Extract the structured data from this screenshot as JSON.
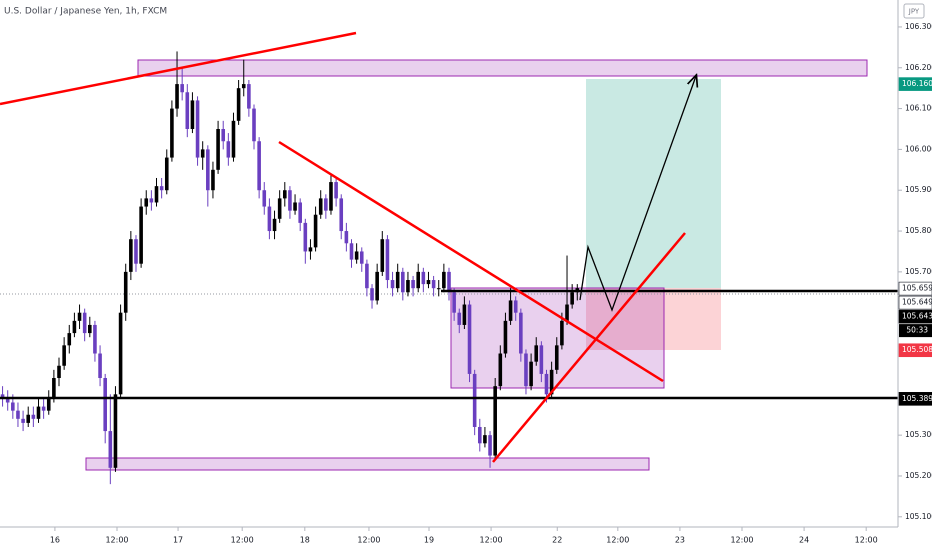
{
  "chart_data": {
    "type": "candlestick",
    "title": "U.S. Dollar / Japanese Yen, 1h, FXCM",
    "currency": "JPY",
    "countdown": "50:33",
    "up_color": "#000000",
    "down_color": "#6a3fc0",
    "xlim": [
      0,
      175
    ],
    "ylim": [
      105.075,
      106.366
    ],
    "xticks": [
      {
        "value": 10.7,
        "label": "16"
      },
      {
        "value": 22.8,
        "label": "12:00"
      },
      {
        "value": 34.7,
        "label": "17"
      },
      {
        "value": 47.2,
        "label": "12:00"
      },
      {
        "value": 59.4,
        "label": "18"
      },
      {
        "value": 71.9,
        "label": "12:00"
      },
      {
        "value": 83.6,
        "label": "19"
      },
      {
        "value": 95.7,
        "label": "12:00"
      },
      {
        "value": 108.6,
        "label": "22"
      },
      {
        "value": 120.4,
        "label": "12:00"
      },
      {
        "value": 132.5,
        "label": "23"
      },
      {
        "value": 144.6,
        "label": "12:00"
      },
      {
        "value": 156.7,
        "label": "24"
      },
      {
        "value": 168.8,
        "label": "12:00"
      }
    ],
    "yticks": [
      {
        "value": 106.3,
        "label": "106.300"
      },
      {
        "value": 106.2,
        "label": "106.200"
      },
      {
        "value": 106.1,
        "label": "106.100"
      },
      {
        "value": 106.0,
        "label": "106.000"
      },
      {
        "value": 105.9,
        "label": "105.900"
      },
      {
        "value": 105.8,
        "label": "105.800"
      },
      {
        "value": 105.7,
        "label": "105.700"
      },
      {
        "value": 105.3,
        "label": "105.300"
      },
      {
        "value": 105.2,
        "label": "105.200"
      },
      {
        "value": 105.1,
        "label": "105.100"
      }
    ],
    "price_labels": [
      {
        "value": 106.16,
        "label": "106.160",
        "color": "#089981"
      },
      {
        "value": 105.659,
        "label": "105.659",
        "color": "#ffffff"
      },
      {
        "value": 105.649,
        "label": "105.649",
        "color": "#ffffff"
      },
      {
        "value": 105.643,
        "label": "105.643",
        "color": "#000000"
      },
      {
        "value": 105.508,
        "label": "105.508",
        "color": "#f23645"
      },
      {
        "value": 105.389,
        "label": "105.389",
        "color": "#000000"
      }
    ],
    "ohlc": [
      [
        105.4,
        105.42,
        105.37,
        105.39
      ],
      [
        105.39,
        105.41,
        105.36,
        105.38
      ],
      [
        105.38,
        105.4,
        105.34,
        105.36
      ],
      [
        105.36,
        105.38,
        105.32,
        105.34
      ],
      [
        105.34,
        105.36,
        105.31,
        105.33
      ],
      [
        105.33,
        105.37,
        105.32,
        105.35
      ],
      [
        105.35,
        105.37,
        105.32,
        105.34
      ],
      [
        105.34,
        105.39,
        105.33,
        105.37
      ],
      [
        105.37,
        105.39,
        105.34,
        105.36
      ],
      [
        105.36,
        105.41,
        105.35,
        105.39
      ],
      [
        105.39,
        105.46,
        105.38,
        105.44
      ],
      [
        105.44,
        105.49,
        105.42,
        105.47
      ],
      [
        105.47,
        105.54,
        105.46,
        105.52
      ],
      [
        105.52,
        105.57,
        105.5,
        105.55
      ],
      [
        105.55,
        105.6,
        105.54,
        105.58
      ],
      [
        105.58,
        105.62,
        105.56,
        105.6
      ],
      [
        105.6,
        105.61,
        105.53,
        105.55
      ],
      [
        105.55,
        105.59,
        105.54,
        105.57
      ],
      [
        105.57,
        105.58,
        105.48,
        105.5
      ],
      [
        105.5,
        105.52,
        105.42,
        105.44
      ],
      [
        105.44,
        105.45,
        105.28,
        105.31
      ],
      [
        105.31,
        105.4,
        105.18,
        105.22
      ],
      [
        105.22,
        105.42,
        105.21,
        105.4
      ],
      [
        105.4,
        105.62,
        105.39,
        105.6
      ],
      [
        105.6,
        105.72,
        105.58,
        105.7
      ],
      [
        105.7,
        105.8,
        105.68,
        105.78
      ],
      [
        105.78,
        105.79,
        105.7,
        105.72
      ],
      [
        105.72,
        105.88,
        105.71,
        105.86
      ],
      [
        105.86,
        105.9,
        105.84,
        105.88
      ],
      [
        105.88,
        105.9,
        105.85,
        105.87
      ],
      [
        105.87,
        105.93,
        105.86,
        105.91
      ],
      [
        105.91,
        105.93,
        105.88,
        105.9
      ],
      [
        105.9,
        106.0,
        105.89,
        105.98
      ],
      [
        105.98,
        106.12,
        105.97,
        106.1
      ],
      [
        106.1,
        106.24,
        106.08,
        106.16
      ],
      [
        106.16,
        106.2,
        106.12,
        106.14
      ],
      [
        106.14,
        106.16,
        106.03,
        106.05
      ],
      [
        106.05,
        106.14,
        106.04,
        106.12
      ],
      [
        106.12,
        106.13,
        105.96,
        105.98
      ],
      [
        105.98,
        106.02,
        105.95,
        106.0
      ],
      [
        106.0,
        106.01,
        105.86,
        105.9
      ],
      [
        105.9,
        105.97,
        105.88,
        105.95
      ],
      [
        105.95,
        106.07,
        105.94,
        106.05
      ],
      [
        106.05,
        106.07,
        106.0,
        106.02
      ],
      [
        106.02,
        106.04,
        105.96,
        105.98
      ],
      [
        105.98,
        106.09,
        105.97,
        106.07
      ],
      [
        106.07,
        106.17,
        106.06,
        106.15
      ],
      [
        106.15,
        106.22,
        106.13,
        106.16
      ],
      [
        106.16,
        106.17,
        106.08,
        106.1
      ],
      [
        106.1,
        106.11,
        106.0,
        106.02
      ],
      [
        106.02,
        106.03,
        105.88,
        105.9
      ],
      [
        105.9,
        105.92,
        105.84,
        105.86
      ],
      [
        105.86,
        105.88,
        105.78,
        105.8
      ],
      [
        105.8,
        105.85,
        105.78,
        105.83
      ],
      [
        105.83,
        105.9,
        105.82,
        105.88
      ],
      [
        105.88,
        105.92,
        105.86,
        105.9
      ],
      [
        105.9,
        105.91,
        105.83,
        105.85
      ],
      [
        105.85,
        105.89,
        105.84,
        105.87
      ],
      [
        105.87,
        105.88,
        105.8,
        105.82
      ],
      [
        105.82,
        105.83,
        105.72,
        105.75
      ],
      [
        105.75,
        105.78,
        105.73,
        105.76
      ],
      [
        105.76,
        105.86,
        105.75,
        105.84
      ],
      [
        105.84,
        105.9,
        105.83,
        105.88
      ],
      [
        105.88,
        105.89,
        105.83,
        105.85
      ],
      [
        105.85,
        105.94,
        105.84,
        105.92
      ],
      [
        105.92,
        105.93,
        105.86,
        105.88
      ],
      [
        105.88,
        105.89,
        105.78,
        105.8
      ],
      [
        105.8,
        105.82,
        105.75,
        105.77
      ],
      [
        105.77,
        105.78,
        105.71,
        105.73
      ],
      [
        105.73,
        105.77,
        105.72,
        105.75
      ],
      [
        105.75,
        105.76,
        105.7,
        105.72
      ],
      [
        105.72,
        105.73,
        105.64,
        105.66
      ],
      [
        105.66,
        105.67,
        105.61,
        105.63
      ],
      [
        105.63,
        105.72,
        105.62,
        105.7
      ],
      [
        105.7,
        105.8,
        105.69,
        105.78
      ],
      [
        105.78,
        105.79,
        105.66,
        105.68
      ],
      [
        105.68,
        105.7,
        105.64,
        105.66
      ],
      [
        105.66,
        105.72,
        105.65,
        105.7
      ],
      [
        105.7,
        105.71,
        105.63,
        105.65
      ],
      [
        105.65,
        105.7,
        105.64,
        105.68
      ],
      [
        105.68,
        105.69,
        105.64,
        105.66
      ],
      [
        105.66,
        105.72,
        105.65,
        105.7
      ],
      [
        105.7,
        105.71,
        105.65,
        105.67
      ],
      [
        105.67,
        105.7,
        105.66,
        105.68
      ],
      [
        105.68,
        105.69,
        105.64,
        105.66
      ],
      [
        105.66,
        105.68,
        105.64,
        105.66
      ],
      [
        105.66,
        105.72,
        105.65,
        105.7
      ],
      [
        105.7,
        105.71,
        105.63,
        105.65
      ],
      [
        105.65,
        105.66,
        105.58,
        105.6
      ],
      [
        105.6,
        105.61,
        105.55,
        105.57
      ],
      [
        105.57,
        105.64,
        105.56,
        105.62
      ],
      [
        105.62,
        105.63,
        105.43,
        105.45
      ],
      [
        105.45,
        105.46,
        105.3,
        105.32
      ],
      [
        105.32,
        105.34,
        105.26,
        105.28
      ],
      [
        105.28,
        105.32,
        105.27,
        105.3
      ],
      [
        105.3,
        105.31,
        105.22,
        105.25
      ],
      [
        105.25,
        105.44,
        105.24,
        105.42
      ],
      [
        105.42,
        105.52,
        105.41,
        105.5
      ],
      [
        105.5,
        105.6,
        105.49,
        105.58
      ],
      [
        105.58,
        105.66,
        105.57,
        105.63
      ],
      [
        105.63,
        105.64,
        105.58,
        105.6
      ],
      [
        105.6,
        105.61,
        105.48,
        105.5
      ],
      [
        105.5,
        105.51,
        105.4,
        105.42
      ],
      [
        105.42,
        105.5,
        105.41,
        105.48
      ],
      [
        105.48,
        105.54,
        105.47,
        105.52
      ],
      [
        105.52,
        105.53,
        105.43,
        105.45
      ],
      [
        105.45,
        105.46,
        105.38,
        105.4
      ],
      [
        105.4,
        105.48,
        105.39,
        105.46
      ],
      [
        105.46,
        105.54,
        105.45,
        105.52
      ],
      [
        105.52,
        105.6,
        105.51,
        105.58
      ],
      [
        105.58,
        105.74,
        105.57,
        105.62
      ],
      [
        105.62,
        105.67,
        105.61,
        105.65
      ],
      [
        105.65,
        105.67,
        105.63,
        105.66
      ]
    ]
  }
}
